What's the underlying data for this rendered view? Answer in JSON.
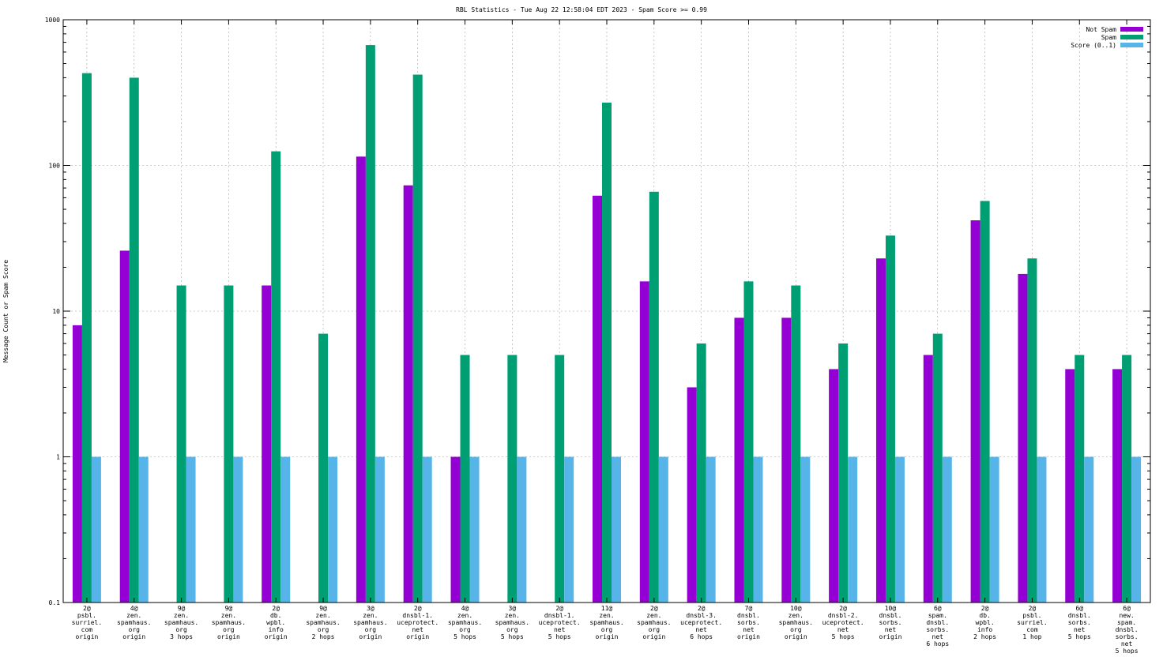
{
  "chart_data": {
    "type": "bar",
    "title": "RBL Statistics - Tue Aug 22 12:58:04 EDT 2023 - Spam Score >= 0.99",
    "xlabel": "",
    "ylabel": "Message Count or Spam Score",
    "yscale": "log",
    "ylim": [
      0.1,
      1000
    ],
    "yticks": [
      "0.1",
      "1",
      "10",
      "100",
      "1000"
    ],
    "grid": true,
    "legend_position": "top-right",
    "colors": {
      "Not Spam": "#9400d3",
      "Spam": "#009e73",
      "Score (0..1)": "#56b4e9"
    },
    "categories": [
      [
        "2@",
        "psbl.",
        "surriel.",
        "com",
        "origin"
      ],
      [
        "4@",
        "zen.",
        "spamhaus.",
        "org",
        "origin"
      ],
      [
        "9@",
        "zen.",
        "spamhaus.",
        "org",
        "3 hops"
      ],
      [
        "9@",
        "zen.",
        "spamhaus.",
        "org",
        "origin"
      ],
      [
        "2@",
        "db.",
        "wpbl.",
        "info",
        "origin"
      ],
      [
        "9@",
        "zen.",
        "spamhaus.",
        "org",
        "2 hops"
      ],
      [
        "3@",
        "zen.",
        "spamhaus.",
        "org",
        "origin"
      ],
      [
        "2@",
        "dnsbl-1.",
        "uceprotect.",
        "net",
        "origin"
      ],
      [
        "4@",
        "zen.",
        "spamhaus.",
        "org",
        "5 hops"
      ],
      [
        "3@",
        "zen.",
        "spamhaus.",
        "org",
        "5 hops"
      ],
      [
        "2@",
        "dnsbl-1.",
        "uceprotect.",
        "net",
        "5 hops"
      ],
      [
        "11@",
        "zen.",
        "spamhaus.",
        "org",
        "origin"
      ],
      [
        "2@",
        "zen.",
        "spamhaus.",
        "org",
        "origin"
      ],
      [
        "2@",
        "dnsbl-3.",
        "uceprotect.",
        "net",
        "6 hops"
      ],
      [
        "7@",
        "dnsbl.",
        "sorbs.",
        "net",
        "origin"
      ],
      [
        "10@",
        "zen.",
        "spamhaus.",
        "org",
        "origin"
      ],
      [
        "2@",
        "dnsbl-2.",
        "uceprotect.",
        "net",
        "5 hops"
      ],
      [
        "10@",
        "dnsbl.",
        "sorbs.",
        "net",
        "origin"
      ],
      [
        "6@",
        "spam.",
        "dnsbl.",
        "sorbs.",
        "net",
        "6 hops"
      ],
      [
        "2@",
        "db.",
        "wpbl.",
        "info",
        "2 hops"
      ],
      [
        "2@",
        "psbl.",
        "surriel.",
        "com",
        "1 hop"
      ],
      [
        "6@",
        "dnsbl.",
        "sorbs.",
        "net",
        "5 hops"
      ],
      [
        "6@",
        "new.",
        "spam.",
        "dnsbl.",
        "sorbs.",
        "net",
        "5 hops"
      ]
    ],
    "series": [
      {
        "name": "Not Spam",
        "values": [
          8,
          26,
          null,
          null,
          15,
          null,
          115,
          73,
          1,
          null,
          null,
          62,
          16,
          3,
          9,
          9,
          4,
          23,
          5,
          42,
          18,
          4,
          4
        ]
      },
      {
        "name": "Spam",
        "values": [
          430,
          400,
          15,
          15,
          125,
          7,
          670,
          420,
          5,
          5,
          5,
          270,
          66,
          6,
          16,
          15,
          6,
          33,
          7,
          57,
          23,
          5,
          5
        ]
      },
      {
        "name": "Score (0..1)",
        "values": [
          1,
          1,
          1,
          1,
          1,
          1,
          1,
          1,
          1,
          1,
          1,
          1,
          1,
          1,
          1,
          1,
          1,
          1,
          1,
          1,
          1,
          1,
          1
        ]
      }
    ]
  }
}
